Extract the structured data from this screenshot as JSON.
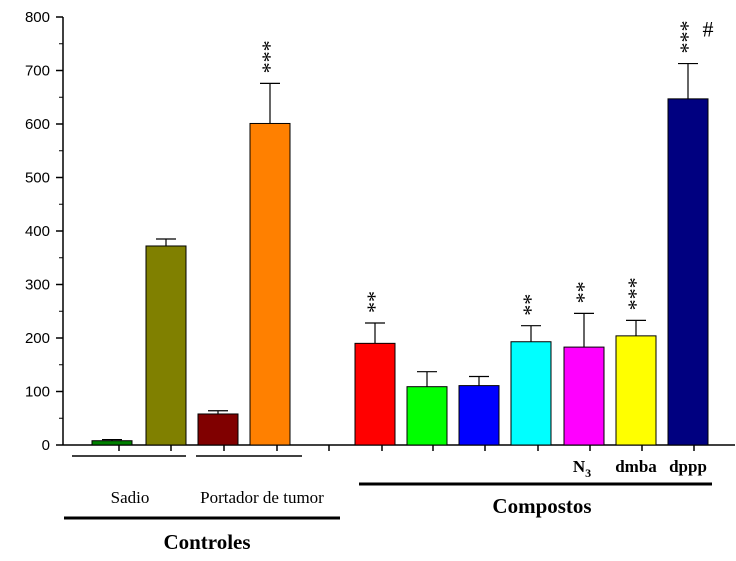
{
  "chart_data": {
    "type": "bar",
    "ylim": [
      0,
      800
    ],
    "yticks": [
      0,
      100,
      200,
      300,
      400,
      500,
      600,
      700,
      800
    ],
    "grid": false,
    "bars": [
      {
        "value": 8,
        "error": 2,
        "color": "#008000",
        "annotation": ""
      },
      {
        "value": 372,
        "error": 13,
        "color": "#808000",
        "annotation": ""
      },
      {
        "value": 58,
        "error": 6,
        "color": "#800000",
        "annotation": ""
      },
      {
        "value": 601,
        "error": 75,
        "color": "#FF8000",
        "annotation": "***"
      },
      {
        "value": 190,
        "error": 38,
        "color": "#FF0000",
        "annotation": "**"
      },
      {
        "value": 109,
        "error": 28,
        "color": "#00FF00",
        "annotation": ""
      },
      {
        "value": 111,
        "error": 17,
        "color": "#0000FF",
        "annotation": ""
      },
      {
        "value": 193,
        "error": 30,
        "color": "#00FFFF",
        "annotation": "**"
      },
      {
        "value": 183,
        "error": 63,
        "color": "#FF00FF",
        "annotation": "**"
      },
      {
        "value": 204,
        "error": 29,
        "color": "#FFFF00",
        "annotation": "***"
      },
      {
        "value": 647,
        "error": 66,
        "color": "#000080",
        "annotation": "***",
        "extra": "#"
      }
    ],
    "category_labels": [
      {
        "text": "N",
        "sub": "3",
        "bar": 8
      },
      {
        "text": "dmba",
        "bar": 9
      },
      {
        "text": "dppp",
        "bar": 10
      }
    ],
    "groups": [
      {
        "label": "Sadio",
        "bars": [
          0,
          1
        ]
      },
      {
        "label": "Portador de tumor",
        "bars": [
          2,
          3
        ]
      }
    ],
    "supergroups": [
      {
        "label": "Controles",
        "bars": [
          0,
          3
        ]
      },
      {
        "label": "Compostos",
        "bars": [
          4,
          10
        ]
      }
    ]
  }
}
